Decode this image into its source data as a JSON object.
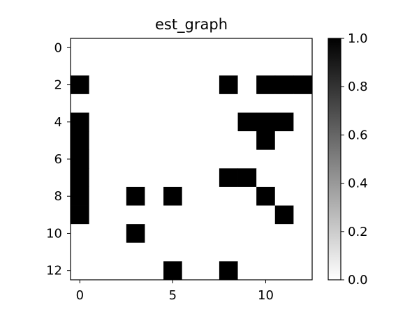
{
  "chart_data": {
    "type": "heatmap",
    "title": "est_graph",
    "xlabel": "",
    "ylabel": "",
    "rows": 13,
    "cols": 13,
    "x_ticks": [
      0,
      5,
      10
    ],
    "y_ticks": [
      0,
      2,
      4,
      6,
      8,
      10,
      12
    ],
    "colormap": "gray_r",
    "vmin": 0.0,
    "vmax": 1.0,
    "colorbar_ticks": [
      "0.0",
      "0.2",
      "0.4",
      "0.6",
      "0.8",
      "1.0"
    ],
    "matrix": [
      [
        0,
        0,
        0,
        0,
        0,
        0,
        0,
        0,
        0,
        0,
        0,
        0,
        0
      ],
      [
        0,
        0,
        0,
        0,
        0,
        0,
        0,
        0,
        0,
        0,
        0,
        0,
        0
      ],
      [
        1,
        0,
        0,
        0,
        0,
        0,
        0,
        0,
        1,
        0,
        1,
        1,
        1
      ],
      [
        0,
        0,
        0,
        0,
        0,
        0,
        0,
        0,
        0,
        0,
        0,
        0,
        0
      ],
      [
        1,
        0,
        0,
        0,
        0,
        0,
        0,
        0,
        0,
        1,
        1,
        1,
        0
      ],
      [
        1,
        0,
        0,
        0,
        0,
        0,
        0,
        0,
        0,
        0,
        1,
        0,
        0
      ],
      [
        1,
        0,
        0,
        0,
        0,
        0,
        0,
        0,
        0,
        0,
        0,
        0,
        0
      ],
      [
        1,
        0,
        0,
        0,
        0,
        0,
        0,
        0,
        1,
        1,
        0,
        0,
        0
      ],
      [
        1,
        0,
        0,
        1,
        0,
        1,
        0,
        0,
        0,
        0,
        1,
        0,
        0
      ],
      [
        1,
        0,
        0,
        0,
        0,
        0,
        0,
        0,
        0,
        0,
        0,
        1,
        0
      ],
      [
        0,
        0,
        0,
        1,
        0,
        0,
        0,
        0,
        0,
        0,
        0,
        0,
        0
      ],
      [
        0,
        0,
        0,
        0,
        0,
        0,
        0,
        0,
        0,
        0,
        0,
        0,
        0
      ],
      [
        0,
        0,
        0,
        0,
        0,
        1,
        0,
        0,
        1,
        0,
        0,
        0,
        0
      ]
    ],
    "colors": {
      "high": "#000000",
      "low": "#ffffff",
      "axes": "#000000",
      "background": "#ffffff"
    }
  }
}
